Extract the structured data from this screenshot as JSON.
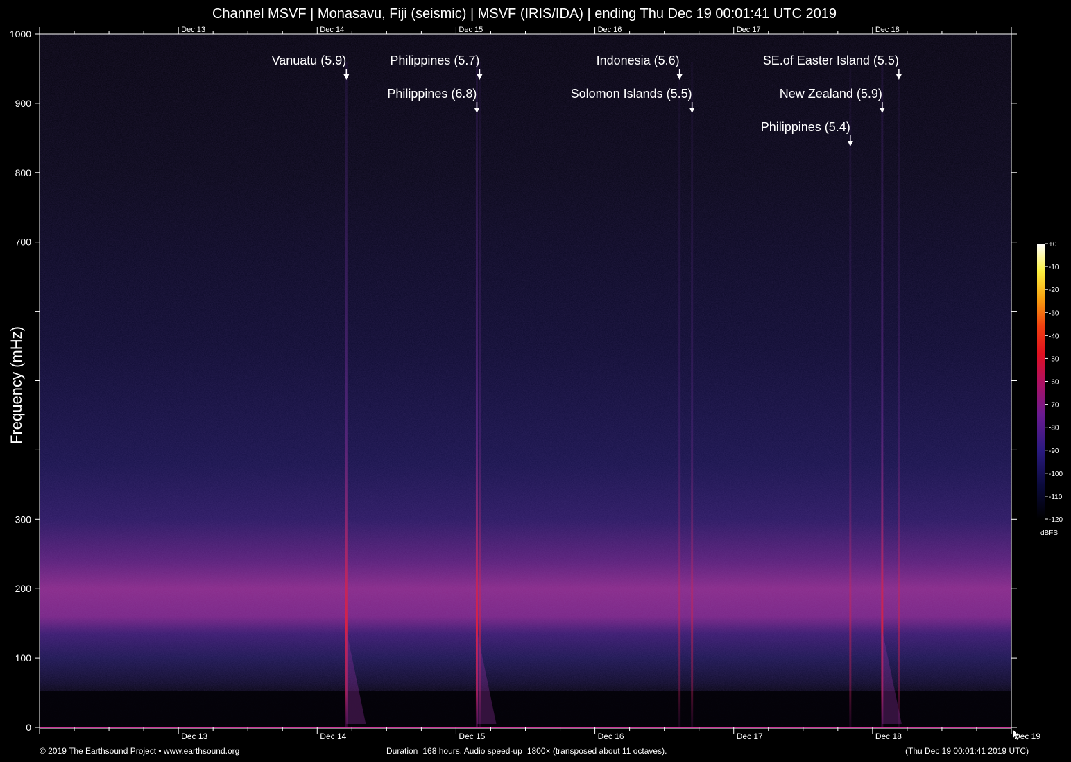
{
  "chart_data": {
    "type": "heatmap",
    "title": "Channel MSVF | Monasavu, Fiji (seismic) | MSVF (IRIS/IDA) | ending Thu Dec 19 00:01:41 UTC 2019",
    "ylabel": "Frequency (mHz)",
    "xlabel": "",
    "ylim": [
      0,
      1000
    ],
    "y_ticks": [
      0,
      100,
      200,
      300,
      400,
      500,
      600,
      700,
      800,
      900,
      1000
    ],
    "y_tick_labels": [
      "0",
      "100",
      "200",
      "300",
      "",
      "",
      "",
      "700",
      "800",
      "900",
      "1000"
    ],
    "x_range_days": [
      0,
      7
    ],
    "x_ticks": [
      {
        "day": 1,
        "label": "Dec 13"
      },
      {
        "day": 2,
        "label": "Dec 14"
      },
      {
        "day": 3,
        "label": "Dec 15"
      },
      {
        "day": 4,
        "label": "Dec 16"
      },
      {
        "day": 5,
        "label": "Dec 17"
      },
      {
        "day": 6,
        "label": "Dec 18"
      },
      {
        "day": 7,
        "label": "Dec 19"
      }
    ],
    "events": [
      {
        "label": "Vanuatu (5.9)",
        "day": 2.21,
        "row": 0,
        "strength": 0.95
      },
      {
        "label": "Philippines (5.7)",
        "day": 3.17,
        "row": 0,
        "strength": 0.45
      },
      {
        "label": "Philippines (6.8)",
        "day": 3.15,
        "row": 1,
        "strength": 1.0
      },
      {
        "label": "Indonesia (5.6)",
        "day": 4.61,
        "row": 0,
        "strength": 0.25
      },
      {
        "label": "Solomon Islands (5.5)",
        "day": 4.7,
        "row": 1,
        "strength": 0.3
      },
      {
        "label": "SE.of Easter Island (5.5)",
        "day": 6.19,
        "row": 0,
        "strength": 0.3
      },
      {
        "label": "New Zealand (5.9)",
        "day": 6.07,
        "row": 1,
        "strength": 0.9
      },
      {
        "label": "Philippines (5.4)",
        "day": 5.84,
        "row": 2,
        "strength": 0.3
      }
    ],
    "colorbar": {
      "unit": "dBFS",
      "ticks": [
        "+0",
        "-10",
        "-20",
        "-30",
        "-40",
        "-50",
        "-60",
        "-70",
        "-80",
        "-90",
        "-100",
        "-110",
        "-120"
      ],
      "range": [
        -120,
        0
      ]
    }
  },
  "footer": {
    "copyright": "© 2019 The Earthsound Project • www.earthsound.org",
    "info": "Duration=168 hours. Audio speed-up=1800× (transposed about 11 octaves).",
    "timestamp": "(Thu Dec 19 00:01:41 2019 UTC)"
  },
  "colors": {
    "background": "#000000",
    "axis": "#ffffff",
    "baseline": "#cc3399"
  }
}
